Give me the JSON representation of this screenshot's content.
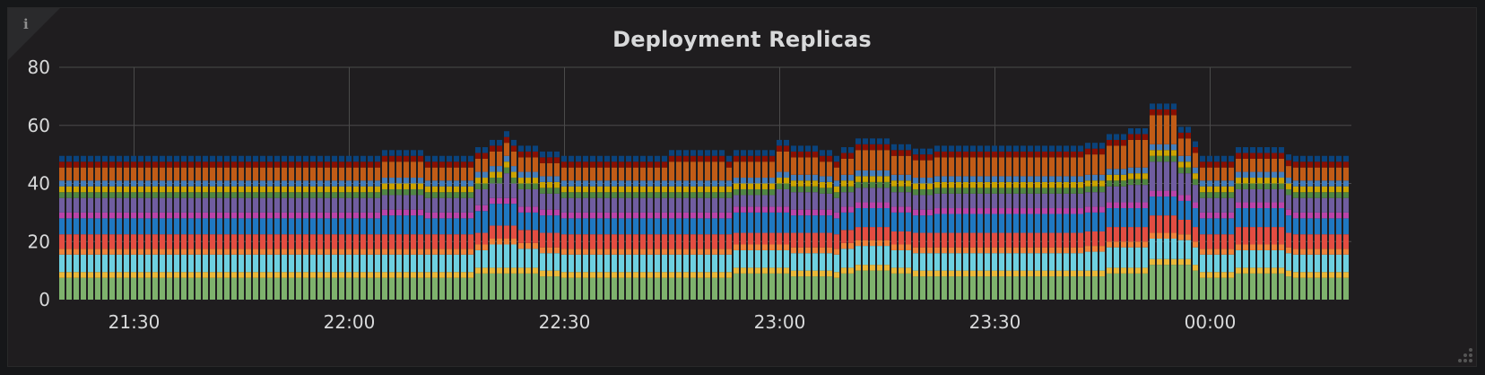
{
  "panel": {
    "title": "Deployment Replicas",
    "info_icon": "i"
  },
  "chart_data": {
    "type": "bar",
    "stacked": true,
    "title": "Deployment Replicas",
    "xlabel": "",
    "ylabel": "",
    "ylim": [
      0,
      80
    ],
    "yticks": [
      "0",
      "20",
      "40",
      "60",
      "80"
    ],
    "xticks": [
      {
        "label": "21:30",
        "index": 10
      },
      {
        "label": "22:00",
        "index": 40
      },
      {
        "label": "22:30",
        "index": 70
      },
      {
        "label": "23:00",
        "index": 100
      },
      {
        "label": "23:30",
        "index": 130
      },
      {
        "label": "00:00",
        "index": 160
      }
    ],
    "grid": true,
    "legend": "hidden",
    "x_start": "21:20",
    "x_step_minutes": 1,
    "bar_count": 180,
    "series_colors": [
      "#7EB26D",
      "#EAB839",
      "#6ED0E0",
      "#EF843C",
      "#E24D42",
      "#1F78C1",
      "#BA43A9",
      "#705DA0",
      "#508642",
      "#CCA300",
      "#447EBC",
      "#C15C17",
      "#890F02",
      "#0A437C"
    ],
    "base_values": [
      7.5,
      2,
      6,
      2,
      5,
      5.5,
      2,
      5,
      2,
      2,
      2,
      4.5,
      2,
      2
    ],
    "variations": [
      {
        "from": 45,
        "to": 50,
        "values": [
          7.5,
          2,
          6,
          2,
          5,
          6.5,
          2,
          5,
          2,
          2,
          2,
          5.5,
          2,
          2
        ]
      },
      {
        "from": 58,
        "to": 59,
        "values": [
          9,
          2,
          6,
          2,
          4,
          7.5,
          2,
          5.5,
          2,
          2,
          2,
          4.5,
          2,
          2
        ]
      },
      {
        "from": 60,
        "to": 61,
        "values": [
          9,
          2,
          8,
          2,
          4.5,
          7.5,
          2,
          5,
          2,
          2,
          2,
          5,
          2,
          2
        ]
      },
      {
        "from": 62,
        "to": 62,
        "values": [
          9,
          2,
          8,
          2,
          4.5,
          7.5,
          2,
          8.5,
          2,
          2,
          2,
          4.5,
          2,
          2
        ]
      },
      {
        "from": 63,
        "to": 63,
        "values": [
          9,
          2,
          8,
          2,
          4.5,
          7.5,
          2,
          5,
          2,
          2,
          2,
          5,
          2,
          2
        ]
      },
      {
        "from": 64,
        "to": 66,
        "values": [
          9,
          2,
          6.5,
          2,
          4.5,
          6,
          2,
          6,
          2,
          2,
          2,
          5,
          2,
          2
        ]
      },
      {
        "from": 67,
        "to": 69,
        "values": [
          8,
          2,
          6,
          2,
          5,
          6,
          2,
          5.5,
          2,
          2,
          2,
          4.5,
          2,
          2
        ]
      },
      {
        "from": 85,
        "to": 92,
        "values": [
          7.5,
          2,
          6,
          2,
          5,
          5.5,
          2,
          5,
          2,
          2,
          2,
          6.5,
          2,
          2
        ]
      },
      {
        "from": 94,
        "to": 99,
        "values": [
          9,
          2,
          6,
          2,
          4,
          7,
          2,
          4,
          2,
          2,
          2,
          5.5,
          2,
          2
        ]
      },
      {
        "from": 100,
        "to": 101,
        "values": [
          9,
          2,
          6,
          2,
          4,
          7,
          2,
          6,
          2,
          2,
          2,
          7,
          2,
          2
        ]
      },
      {
        "from": 102,
        "to": 105,
        "values": [
          8,
          2,
          6,
          2,
          5,
          6,
          2,
          6,
          2,
          2,
          2,
          6,
          2,
          2
        ]
      },
      {
        "from": 106,
        "to": 107,
        "values": [
          8,
          2,
          6,
          2,
          5,
          6,
          2,
          5.5,
          2,
          2,
          2,
          5,
          2,
          2
        ]
      },
      {
        "from": 109,
        "to": 110,
        "values": [
          9,
          2,
          6.5,
          2,
          4.5,
          6,
          2,
          5,
          2,
          2,
          2,
          5.5,
          2,
          2
        ]
      },
      {
        "from": 111,
        "to": 115,
        "values": [
          10,
          2,
          6.5,
          2,
          4.5,
          6.5,
          2,
          5,
          2,
          2,
          2,
          7,
          2,
          2
        ]
      },
      {
        "from": 116,
        "to": 118,
        "values": [
          9,
          2,
          6,
          2,
          4.5,
          6.5,
          2,
          5,
          2,
          2,
          2,
          6.5,
          2,
          2
        ]
      },
      {
        "from": 119,
        "to": 121,
        "values": [
          8,
          2,
          6,
          2,
          5,
          6,
          2,
          5,
          2,
          2,
          2,
          6,
          2,
          2
        ]
      },
      {
        "from": 122,
        "to": 142,
        "values": [
          8,
          2,
          6,
          2,
          5,
          6.5,
          2,
          5,
          2,
          2,
          2,
          6.5,
          2,
          2
        ]
      },
      {
        "from": 143,
        "to": 145,
        "values": [
          8,
          2,
          6.5,
          2,
          5,
          6.5,
          2,
          5,
          2,
          2,
          2,
          7,
          2,
          2
        ]
      },
      {
        "from": 146,
        "to": 148,
        "values": [
          9,
          2,
          7,
          2,
          5,
          6.5,
          2,
          5.5,
          2,
          2,
          2,
          8,
          2,
          2
        ]
      },
      {
        "from": 149,
        "to": 151,
        "values": [
          9,
          2,
          7,
          2,
          5,
          6.5,
          2,
          6,
          2,
          2,
          2,
          9.5,
          2,
          2
        ]
      },
      {
        "from": 152,
        "to": 155,
        "values": [
          12,
          2,
          7,
          2,
          6,
          6.5,
          2,
          10,
          2,
          2,
          2,
          10,
          2,
          2
        ]
      },
      {
        "from": 156,
        "to": 157,
        "values": [
          12,
          2,
          6.5,
          2,
          5,
          6.5,
          2,
          7.5,
          2,
          2,
          2,
          6,
          2,
          2
        ]
      },
      {
        "from": 158,
        "to": 158,
        "values": [
          10,
          2,
          6,
          2,
          5,
          6.5,
          2,
          6,
          2,
          2,
          2,
          5,
          2,
          2
        ]
      },
      {
        "from": 164,
        "to": 170,
        "values": [
          9,
          2,
          6,
          2,
          6,
          6.5,
          2,
          4.5,
          2,
          2,
          2,
          4.5,
          2,
          2
        ]
      },
      {
        "from": 171,
        "to": 171,
        "values": [
          8,
          2,
          6,
          2,
          5,
          6,
          2,
          5,
          2,
          2,
          2,
          4,
          2,
          2
        ]
      }
    ]
  }
}
